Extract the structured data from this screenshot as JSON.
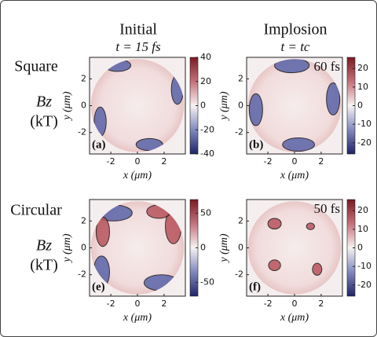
{
  "column_titles": [
    [
      "Initial",
      "t = 15 fs"
    ],
    [
      "Implosion",
      "t = tc"
    ]
  ],
  "row_labels": [
    [
      "Square",
      "Bz",
      "(kT)"
    ],
    [
      "Circular",
      "Bz",
      "(kT)"
    ]
  ],
  "chart_data": [
    {
      "type": "heatmap",
      "panel_label": "(a)",
      "xlabel": "x (μm)",
      "ylabel": "y (μm)",
      "xlim": [
        -3.6,
        3.6
      ],
      "ylim": [
        -3.6,
        3.6
      ],
      "xticks": [
        -2,
        0,
        2
      ],
      "yticks": [
        -2,
        0,
        2
      ],
      "clim": [
        -40,
        40
      ],
      "cticks": [
        40,
        20,
        0,
        -20,
        -40
      ]
    },
    {
      "type": "heatmap",
      "panel_label": "(b)",
      "annotation": "60 fs",
      "xlabel": "x (μm)",
      "ylabel": "y (μm)",
      "xlim": [
        -3.6,
        3.6
      ],
      "ylim": [
        -3.6,
        3.6
      ],
      "xticks": [
        -2,
        0,
        2
      ],
      "yticks": [
        -2,
        0,
        2
      ],
      "clim": [
        -26,
        26
      ],
      "cticks": [
        20,
        10,
        0,
        -10,
        -20
      ]
    },
    {
      "type": "heatmap",
      "panel_label": "(e)",
      "xlabel": "x (μm)",
      "ylabel": "y (μm)",
      "xlim": [
        -3.6,
        3.6
      ],
      "ylim": [
        -3.6,
        3.6
      ],
      "xticks": [
        -2,
        0,
        2
      ],
      "yticks": [
        -2,
        0,
        2
      ],
      "clim": [
        -70,
        70
      ],
      "cticks": [
        50,
        0,
        -50
      ]
    },
    {
      "type": "heatmap",
      "panel_label": "(f)",
      "annotation": "50 fs",
      "xlabel": "x (μm)",
      "ylabel": "y (μm)",
      "xlim": [
        -3.6,
        3.6
      ],
      "ylim": [
        -3.6,
        3.6
      ],
      "xticks": [
        -2,
        0,
        2
      ],
      "yticks": [
        -2,
        0,
        2
      ],
      "clim": [
        -26,
        26
      ],
      "cticks": [
        20,
        10,
        0,
        -10,
        -20
      ]
    }
  ]
}
